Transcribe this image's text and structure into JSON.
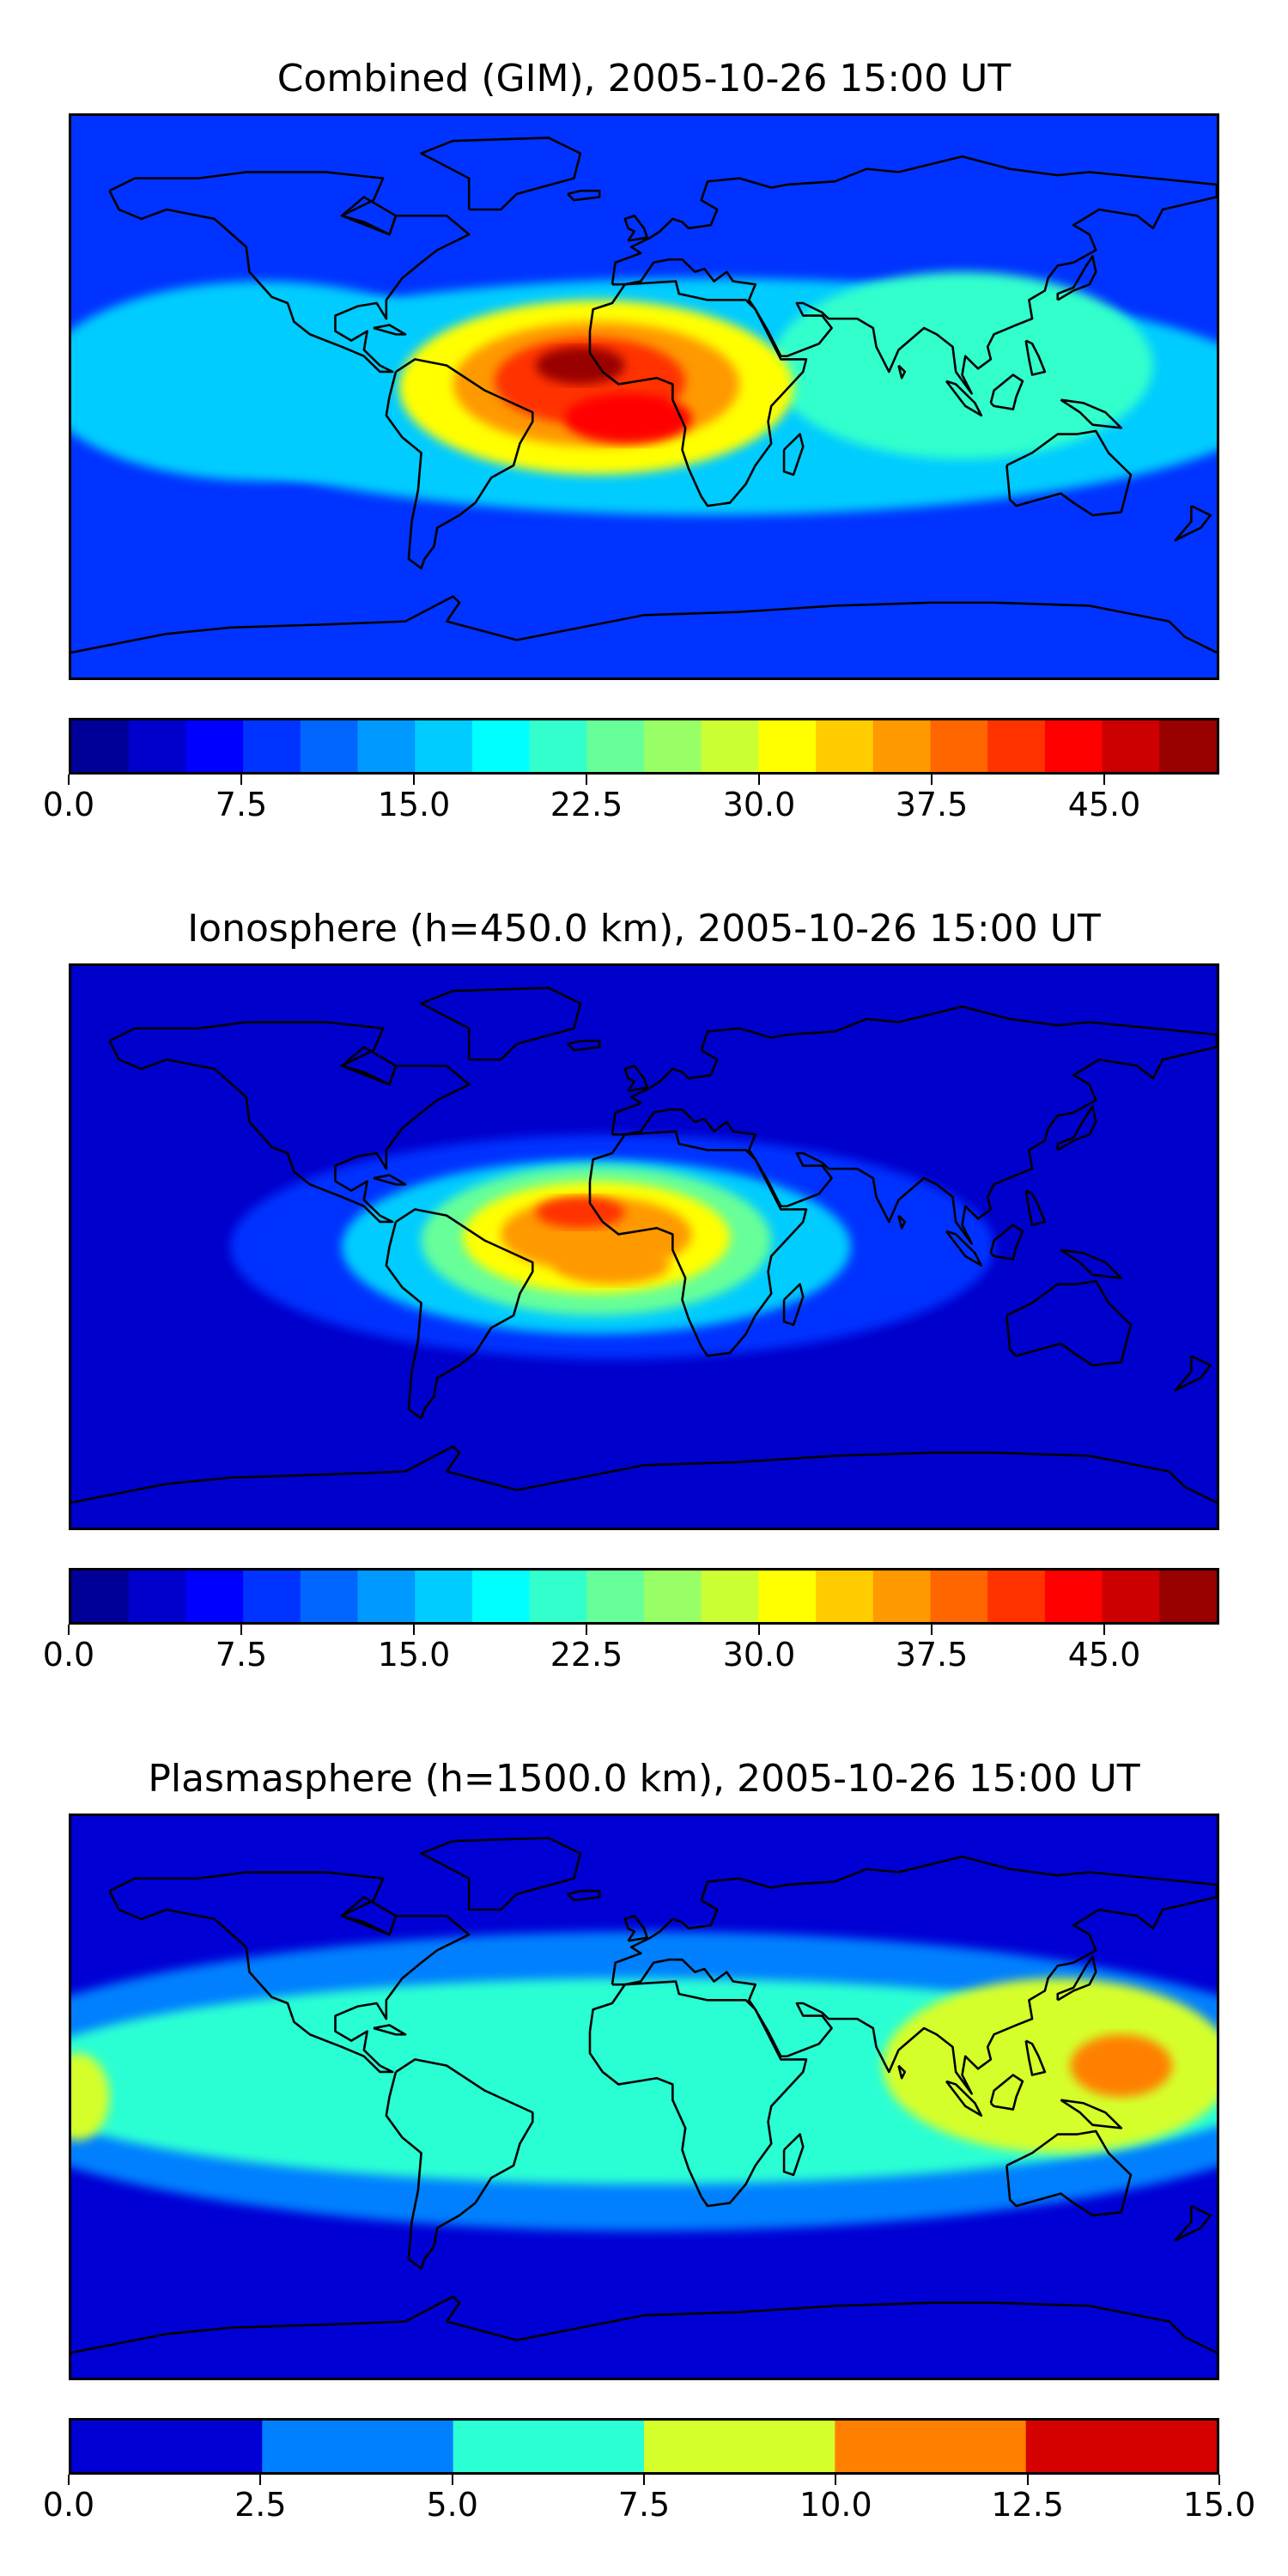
{
  "chart_data": [
    {
      "type": "heatmap",
      "title": "Combined (GIM), 2005-10-26 15:00 UT",
      "xlabel": "",
      "ylabel": "",
      "colorbar": {
        "vmin": 0.0,
        "vmax": 50.0,
        "levels": 20,
        "ticks": [
          0.0,
          7.5,
          15.0,
          22.5,
          30.0,
          37.5,
          45.0
        ],
        "tick_labels": [
          "0.0",
          "7.5",
          "15.0",
          "22.5",
          "30.0",
          "37.5",
          "45.0"
        ]
      },
      "background_level": 8,
      "features": [
        {
          "name": "equatorial band",
          "lon": 20,
          "lat": 0,
          "rlon": 180,
          "rlat": 38,
          "value": 17
        },
        {
          "name": "band west pacific",
          "lon": -120,
          "lat": 5,
          "rlon": 70,
          "rlat": 32,
          "value": 15
        },
        {
          "name": "band asia",
          "lon": 100,
          "lat": 10,
          "rlon": 60,
          "rlat": 30,
          "value": 21
        },
        {
          "name": "atlantic anomaly outer",
          "lon": -15,
          "lat": 3,
          "rlon": 62,
          "rlat": 28,
          "value": 30
        },
        {
          "name": "atlantic anomaly mid",
          "lon": -15,
          "lat": 4,
          "rlon": 45,
          "rlat": 20,
          "value": 37
        },
        {
          "name": "atlantic anomaly inner",
          "lon": -17,
          "lat": 5,
          "rlon": 30,
          "rlat": 14,
          "value": 42
        },
        {
          "name": "peak",
          "lon": -20,
          "lat": 10,
          "rlon": 14,
          "rlat": 6,
          "value": 48
        },
        {
          "name": "south peak",
          "lon": -5,
          "lat": -7,
          "rlon": 20,
          "rlat": 8,
          "value": 44
        }
      ]
    },
    {
      "type": "heatmap",
      "title": "Ionosphere  (h=450.0 km), 2005-10-26 15:00 UT",
      "xlabel": "",
      "ylabel": "",
      "colorbar": {
        "vmin": 0.0,
        "vmax": 50.0,
        "levels": 20,
        "ticks": [
          0.0,
          7.5,
          15.0,
          22.5,
          30.0,
          37.5,
          45.0
        ],
        "tick_labels": [
          "0.0",
          "7.5",
          "15.0",
          "22.5",
          "30.0",
          "37.5",
          "45.0"
        ]
      },
      "background_level": 4,
      "features": [
        {
          "name": "band",
          "lon": -10,
          "lat": 0,
          "rlon": 120,
          "rlat": 36,
          "value": 9
        },
        {
          "name": "band inner",
          "lon": -15,
          "lat": 0,
          "rlon": 80,
          "rlat": 28,
          "value": 15
        },
        {
          "name": "anomaly outer",
          "lon": -15,
          "lat": 2,
          "rlon": 55,
          "rlat": 24,
          "value": 24
        },
        {
          "name": "anomaly mid",
          "lon": -15,
          "lat": 3,
          "rlon": 42,
          "rlat": 18,
          "value": 31
        },
        {
          "name": "anomaly inner",
          "lon": -15,
          "lat": 4,
          "rlon": 30,
          "rlat": 12,
          "value": 35
        },
        {
          "name": "north peak",
          "lon": -20,
          "lat": 11,
          "rlon": 14,
          "rlat": 5,
          "value": 40
        },
        {
          "name": "south peak",
          "lon": -10,
          "lat": -6,
          "rlon": 18,
          "rlat": 6,
          "value": 37
        }
      ]
    },
    {
      "type": "heatmap",
      "title": "Plasmasphere (h=1500.0 km), 2005-10-26 15:00 UT",
      "xlabel": "",
      "ylabel": "",
      "colorbar": {
        "vmin": 0.0,
        "vmax": 15.0,
        "levels": 6,
        "ticks": [
          0.0,
          2.5,
          5.0,
          7.5,
          10.0,
          12.5,
          15.0
        ],
        "tick_labels": [
          "0.0",
          "2.5",
          "5.0",
          "7.5",
          "10.0",
          "12.5",
          "15.0"
        ]
      },
      "background_level": 1.5,
      "features": [
        {
          "name": "mid band",
          "lon": 0,
          "lat": 5,
          "rlon": 220,
          "rlat": 48,
          "value": 4
        },
        {
          "name": "inner band",
          "lon": 0,
          "lat": 5,
          "rlon": 200,
          "rlat": 33,
          "value": 6
        },
        {
          "name": "asia high",
          "lon": 130,
          "lat": 10,
          "rlon": 55,
          "rlat": 28,
          "value": 9
        },
        {
          "name": "pacific core",
          "lon": 150,
          "lat": 10,
          "rlon": 16,
          "rlat": 10,
          "value": 11
        },
        {
          "name": "west pacific",
          "lon": -178,
          "lat": 0,
          "rlon": 10,
          "rlat": 14,
          "value": 8
        }
      ]
    }
  ]
}
